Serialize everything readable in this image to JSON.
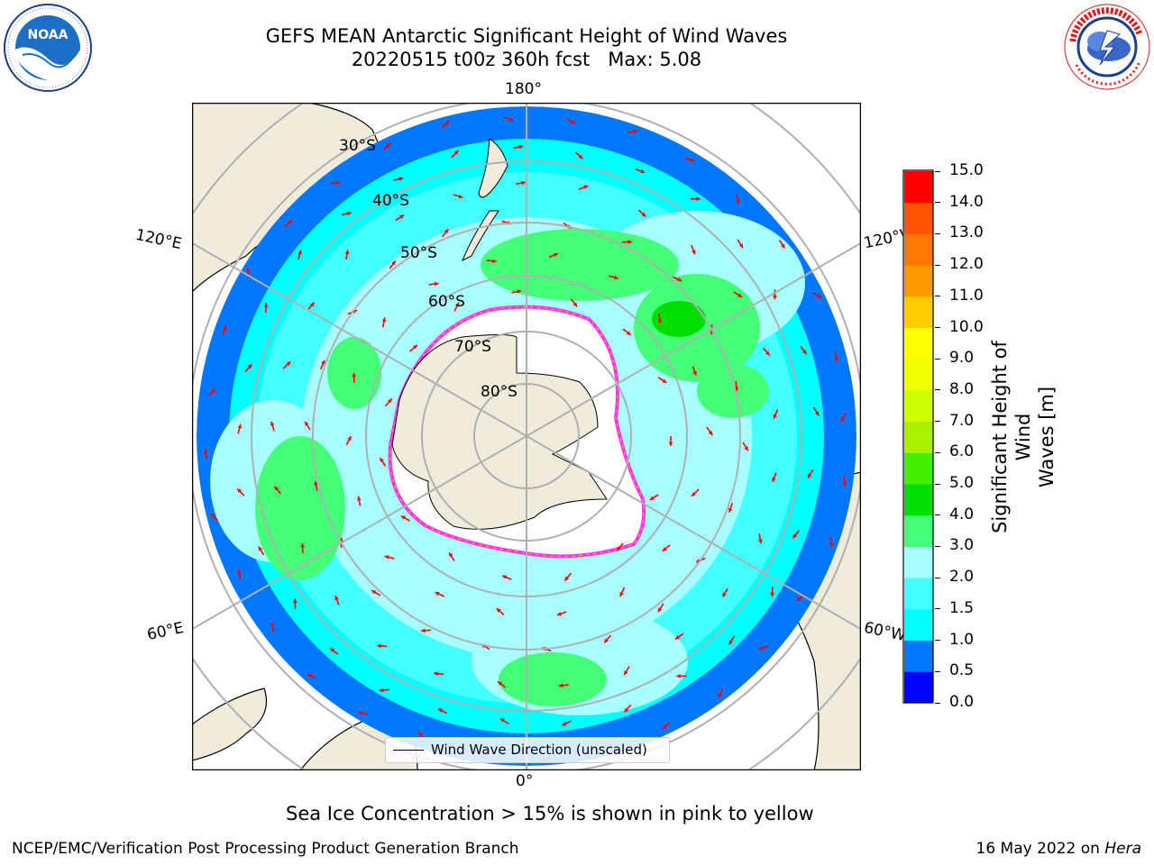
{
  "header": {
    "title_line1": "GEFS MEAN Antarctic Significant Height of Wind Waves",
    "title_line2": "20220515 t00z 360h fcst   Max: 5.08"
  },
  "logos": {
    "left": {
      "name": "noaa-logo",
      "text": "NOAA",
      "ring_text": "NATIONAL OCEANIC AND ATMOSPHERIC ADMINISTRATION · U.S. DEPARTMENT OF COMMERCE",
      "color": "#1c6fc4"
    },
    "right": {
      "name": "nws-logo",
      "ring_text": "NATIONAL WEATHER SERVICE",
      "color": "#e21b1b"
    }
  },
  "map": {
    "projection": "south-polar-stereographic",
    "longitude_labels": {
      "top": "180°",
      "bottom": "0°",
      "left_upper": "120°E",
      "left_lower": "60°E",
      "right_upper": "120°W",
      "right_lower": "60°W"
    },
    "latitude_labels": [
      "30°S",
      "40°S",
      "50°S",
      "60°S",
      "70°S",
      "80°S"
    ],
    "colors": {
      "land": "#efecdc",
      "ice": "#ffffff",
      "ice_edge_pink": "#ff33ff",
      "ice_edge_yellow": "#ffcc00",
      "arrow": "#ff0000",
      "grid": "#b0b0b0"
    },
    "legend_label": "Wind Wave Direction (unscaled)"
  },
  "colorbar": {
    "label": "Significant Height of Wind Waves [m]",
    "label_line1": "Significant Height of Wind",
    "label_line2": "Waves [m]",
    "ticks": [
      "0.0",
      "0.5",
      "1.0",
      "1.5",
      "2.0",
      "3.0",
      "4.0",
      "5.0",
      "6.0",
      "7.0",
      "8.0",
      "9.0",
      "10.0",
      "11.0",
      "12.0",
      "13.0",
      "14.0",
      "15.0"
    ],
    "colors": [
      "#0000ff",
      "#0077ff",
      "#00ffff",
      "#44ffff",
      "#a8ffff",
      "#44ff77",
      "#00dd00",
      "#44ee00",
      "#aaee00",
      "#ccff00",
      "#eeff00",
      "#ffff00",
      "#ffcc00",
      "#ff9900",
      "#ff7700",
      "#ff5500",
      "#ff0000"
    ]
  },
  "caption": "Sea Ice Concentration > 15% is shown in pink to yellow",
  "footer": {
    "left": "NCEP/EMC/Verification Post Processing Product Generation Branch",
    "right_prefix": "16 May 2022 on ",
    "right_machine": "Hera"
  }
}
